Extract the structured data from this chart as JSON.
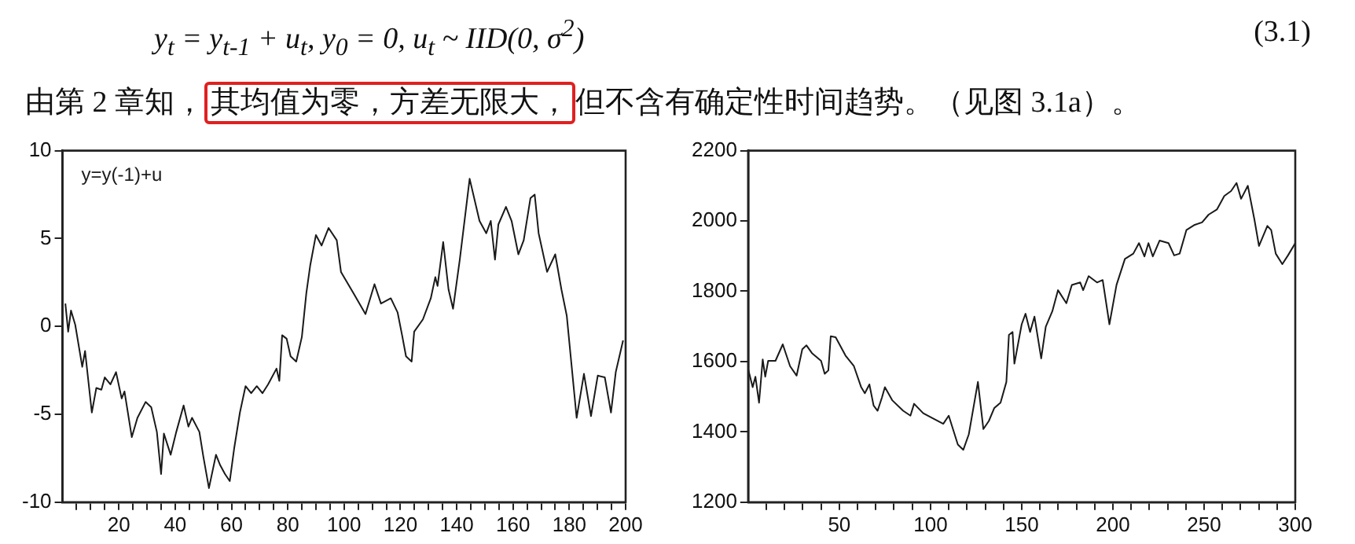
{
  "chart_data": [
    {
      "type": "line",
      "annotations": [
        "y$_{t}$ = y$_{t-1}$ + u$_{t}$,    y$_{0}$ = 0,    u$_{t}$ ~ IID(0, σ$^{2}$)",
        "(3.1)",
        "由第 2 章知，",
        "其均值为零，方差无限大，",
        "但不含有确定性时间趋势。（见图 3.1a）。"
      ],
      "series": [
        {
          "name": "y=y(-1)+u",
          "color": "#1a1a1a",
          "x": [
            1,
            2,
            3,
            4.5,
            7,
            8,
            10.4,
            12,
            13.8,
            15,
            17,
            19,
            21,
            22,
            24.6,
            26.6,
            29.5,
            31.5,
            33.5,
            35,
            36,
            38.4,
            40.4,
            43,
            44.7,
            46,
            48.6,
            50,
            52,
            54.5,
            56,
            57.7,
            59.4,
            61,
            63,
            65,
            67,
            69,
            71,
            73,
            76,
            77,
            78,
            79.6,
            81,
            83,
            85,
            86.6,
            88,
            90,
            92,
            94.5,
            97.4,
            98.9,
            103.3,
            107.6,
            110.8,
            113.1,
            116.6,
            119,
            120.6,
            122,
            124,
            124.9,
            128,
            130.8,
            132.4,
            133.2,
            135.2,
            137.1,
            138.7,
            141.1,
            144.6,
            148.1,
            150.5,
            152.1,
            153.6,
            154.8,
            157.5,
            159.5,
            161.9,
            163.8,
            166.2,
            167.7,
            169.1,
            172.1,
            175,
            177.2,
            179.1,
            182.6,
            185.2,
            187.7,
            190.1,
            192.6,
            194.8,
            196.5,
            199.1
          ],
          "values": [
            1.3,
            -0.3,
            0.9,
            0.1,
            -2.3,
            -1.4,
            -4.9,
            -3.5,
            -3.6,
            -2.9,
            -3.3,
            -2.6,
            -4.1,
            -3.7,
            -6.3,
            -5.2,
            -4.3,
            -4.6,
            -6.0,
            -8.4,
            -6.1,
            -7.3,
            -6.0,
            -4.5,
            -5.7,
            -5.2,
            -6.0,
            -7.4,
            -9.2,
            -7.3,
            -7.9,
            -8.4,
            -8.8,
            -6.9,
            -4.9,
            -3.4,
            -3.8,
            -3.4,
            -3.8,
            -3.3,
            -2.4,
            -3.1,
            -0.5,
            -0.7,
            -1.7,
            -2.0,
            -0.6,
            1.9,
            3.5,
            5.2,
            4.6,
            5.6,
            4.9,
            3.1,
            1.9,
            0.7,
            2.4,
            1.3,
            1.6,
            0.8,
            -0.5,
            -1.7,
            -2.0,
            -0.3,
            0.4,
            1.6,
            2.8,
            2.3,
            4.8,
            2.1,
            1.0,
            3.8,
            8.4,
            6.0,
            5.3,
            6.0,
            3.8,
            5.8,
            6.8,
            6.0,
            4.1,
            4.9,
            7.3,
            7.5,
            5.3,
            3.1,
            4.1,
            2.1,
            0.6,
            -5.2,
            -2.7,
            -5.1,
            -2.8,
            -2.9,
            -4.9,
            -2.6,
            -0.8
          ]
        }
      ],
      "xlim": [
        0,
        200
      ],
      "ylim": [
        -10,
        10
      ],
      "yticks": [
        -10,
        -5,
        0,
        5,
        10
      ],
      "xticks": [
        {
          "value": 5,
          "label": null
        },
        {
          "value": 10,
          "label": null
        },
        {
          "value": 15,
          "label": null
        },
        20,
        {
          "value": 25,
          "label": null
        },
        {
          "value": 30,
          "label": null
        },
        {
          "value": 35,
          "label": null
        },
        40,
        {
          "value": 45,
          "label": null
        },
        {
          "value": 50,
          "label": null
        },
        {
          "value": 55,
          "label": null
        },
        60,
        {
          "value": 65,
          "label": null
        },
        {
          "value": 70,
          "label": null
        },
        {
          "value": 75,
          "label": null
        },
        80,
        {
          "value": 85,
          "label": null
        },
        {
          "value": 90,
          "label": null
        },
        {
          "value": 95,
          "label": null
        },
        100,
        {
          "value": 105,
          "label": null
        },
        {
          "value": 110,
          "label": null
        },
        {
          "value": 115,
          "label": null
        },
        120,
        {
          "value": 125,
          "label": null
        },
        {
          "value": 130,
          "label": null
        },
        {
          "value": 135,
          "label": null
        },
        140,
        {
          "value": 145,
          "label": null
        },
        {
          "value": 150,
          "label": null
        },
        {
          "value": 155,
          "label": null
        },
        160,
        {
          "value": 165,
          "label": null
        },
        {
          "value": 170,
          "label": null
        },
        {
          "value": 175,
          "label": null
        },
        180,
        {
          "value": 185,
          "label": null
        },
        {
          "value": 190,
          "label": null
        },
        {
          "value": 195,
          "label": null
        },
        200
      ],
      "grid": false
    },
    {
      "type": "line",
      "series": [
        {
          "color": "#1a1a1a",
          "x": [
            0,
            2.5,
            4,
            6,
            8,
            9.4,
            11,
            15,
            19,
            23,
            26.6,
            29.7,
            32,
            35,
            40,
            42,
            44,
            45.3,
            48,
            53.4,
            58,
            62,
            64,
            66.5,
            68.8,
            71,
            73.4,
            75,
            79,
            85,
            89,
            91,
            96,
            102.5,
            107,
            110,
            115,
            118,
            121,
            126,
            129,
            132,
            135,
            138.4,
            141.6,
            143,
            145,
            146,
            150,
            152.1,
            154.6,
            157,
            160.7,
            163.2,
            166.8,
            169.9,
            174.5,
            177.5,
            182.1,
            183.7,
            186.7,
            191.3,
            194.4,
            198.1,
            202,
            206.6,
            211.2,
            214.3,
            217.3,
            219.5,
            221.9,
            225.6,
            230.5,
            233.6,
            236.6,
            240.3,
            244.9,
            248.9,
            252.5,
            257.1,
            261.1,
            264.8,
            267.8,
            270.3,
            274,
            277.6,
            280.1,
            284.7,
            286.8,
            289.3,
            292.9,
            296,
            300
          ],
          "values": [
            1579,
            1527,
            1557,
            1483,
            1606,
            1557,
            1602,
            1602,
            1649,
            1587,
            1560,
            1635,
            1646,
            1624,
            1602,
            1565,
            1575,
            1672,
            1669,
            1617,
            1587,
            1527,
            1510,
            1535,
            1475,
            1460,
            1498,
            1527,
            1490,
            1460,
            1446,
            1480,
            1453,
            1435,
            1423,
            1446,
            1364,
            1349,
            1393,
            1542,
            1408,
            1431,
            1468,
            1483,
            1542,
            1676,
            1684,
            1594,
            1706,
            1736,
            1684,
            1728,
            1609,
            1699,
            1743,
            1803,
            1766,
            1818,
            1825,
            1803,
            1843,
            1825,
            1832,
            1706,
            1818,
            1892,
            1907,
            1937,
            1899,
            1937,
            1899,
            1944,
            1937,
            1902,
            1907,
            1974,
            1989,
            1996,
            2018,
            2033,
            2071,
            2085,
            2108,
            2063,
            2100,
            2004,
            1929,
            1986,
            1974,
            1907,
            1877,
            1902,
            1937
          ]
        }
      ],
      "xlim": [
        0,
        300
      ],
      "ylim": [
        1200,
        2200
      ],
      "yticks": [
        1200,
        1400,
        1600,
        1800,
        2000,
        2200
      ],
      "xticks": [
        {
          "value": 10,
          "label": null
        },
        {
          "value": 20,
          "label": null
        },
        {
          "value": 30,
          "label": null
        },
        {
          "value": 40,
          "label": null
        },
        50,
        {
          "value": 60,
          "label": null
        },
        {
          "value": 70,
          "label": null
        },
        {
          "value": 80,
          "label": null
        },
        {
          "value": 90,
          "label": null
        },
        100,
        {
          "value": 110,
          "label": null
        },
        {
          "value": 120,
          "label": null
        },
        {
          "value": 130,
          "label": null
        },
        {
          "value": 140,
          "label": null
        },
        150,
        {
          "value": 160,
          "label": null
        },
        {
          "value": 170,
          "label": null
        },
        {
          "value": 180,
          "label": null
        },
        {
          "value": 190,
          "label": null
        },
        200,
        {
          "value": 210,
          "label": null
        },
        {
          "value": 220,
          "label": null
        },
        {
          "value": 230,
          "label": null
        },
        {
          "value": 240,
          "label": null
        },
        250,
        {
          "value": 260,
          "label": null
        },
        {
          "value": 270,
          "label": null
        },
        {
          "value": 280,
          "label": null
        },
        {
          "value": 290,
          "label": null
        },
        300
      ],
      "grid": false
    }
  ]
}
